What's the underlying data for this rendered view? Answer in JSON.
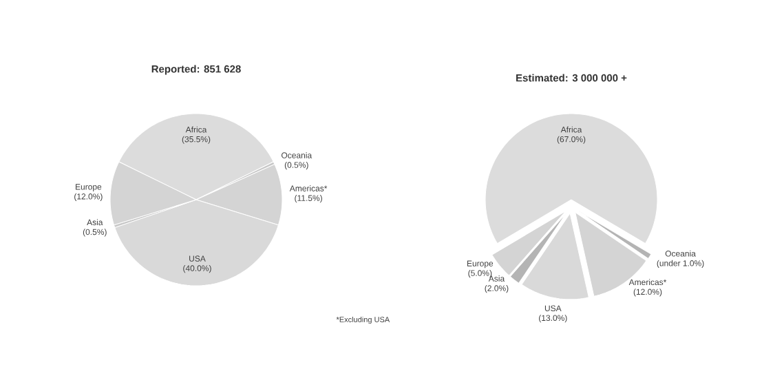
{
  "chart_data": [
    {
      "type": "pie",
      "title": "Reported: 851 628",
      "categories": [
        "Africa",
        "Oceania",
        "Americas*",
        "USA",
        "Asia",
        "Europe"
      ],
      "values": [
        35.5,
        0.5,
        11.5,
        40.0,
        0.5,
        12.0
      ],
      "value_labels": [
        "(35.5%)",
        "(0.5%)",
        "(11.5%)",
        "(40.0%)",
        "(0.5%)",
        "(12.0%)"
      ],
      "colors": [
        "#dcdcdc",
        "#c8c8c8",
        "#d4d4d4",
        "#d9d9d9",
        "#c8c8c8",
        "#d4d4d4"
      ],
      "annotations": [
        "*Excluding USA"
      ]
    },
    {
      "type": "pie",
      "title": "Estimated: 3 000 000 +",
      "categories": [
        "Africa",
        "Oceania",
        "Americas*",
        "USA",
        "Asia",
        "Europe"
      ],
      "values": [
        67.0,
        1.0,
        12.0,
        13.0,
        2.0,
        5.0
      ],
      "value_labels": [
        "(67.0%)",
        "(under 1.0%)",
        "(12.0%)",
        "(13.0%)",
        "(2.0%)",
        "(5.0%)"
      ],
      "colors": [
        "#dcdcdc",
        "#b4b4b4",
        "#d4d4d4",
        "#d9d9d9",
        "#b4b4b4",
        "#d4d4d4"
      ]
    }
  ]
}
